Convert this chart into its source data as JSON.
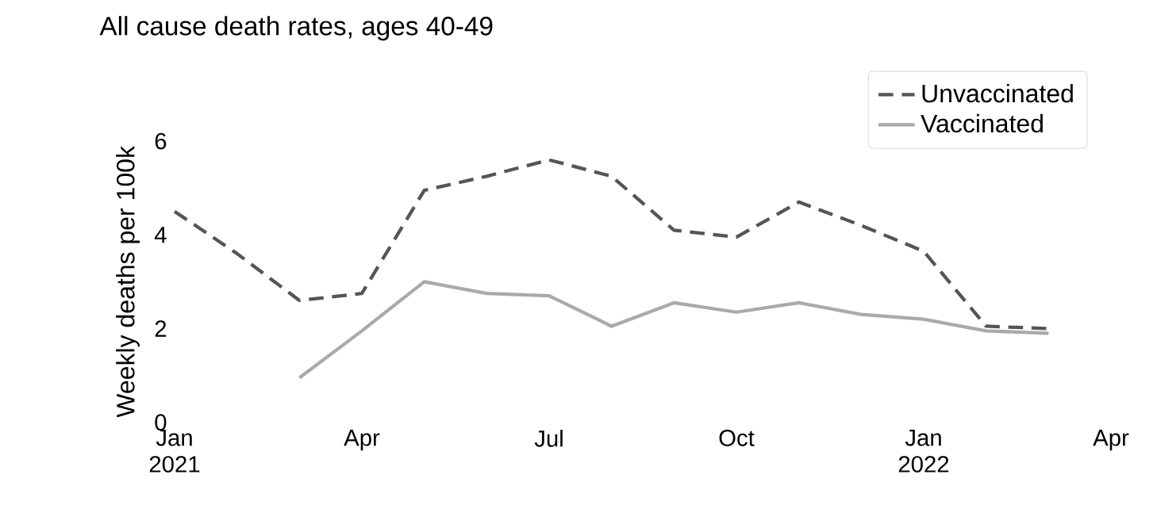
{
  "chart_data": {
    "type": "line",
    "title": "All cause death rates, ages 40-49",
    "ylabel": "Weekly deaths per 100k",
    "xlim": [
      "2021-01",
      "2022-04"
    ],
    "ylim": [
      0,
      6
    ],
    "xticks": [
      {
        "value": "2021-01",
        "label": "Jan 2021"
      },
      {
        "value": "2021-04",
        "label": "Apr"
      },
      {
        "value": "2021-07",
        "label": "Jul"
      },
      {
        "value": "2021-10",
        "label": "Oct"
      },
      {
        "value": "2022-01",
        "label": "Jan 2022"
      },
      {
        "value": "2022-04",
        "label": "Apr"
      }
    ],
    "yticks": [
      0,
      2,
      4,
      6
    ],
    "legend": "top right",
    "grid": false,
    "series": [
      {
        "name": "Unvaccinated",
        "color": "#555555",
        "line_style": "dashed",
        "x": [
          "2021-01",
          "2021-02",
          "2021-03",
          "2021-04",
          "2021-05",
          "2021-06",
          "2021-07",
          "2021-08",
          "2021-09",
          "2021-10",
          "2021-11",
          "2021-12",
          "2022-01",
          "2022-02",
          "2022-03"
        ],
        "values": [
          4.5,
          3.6,
          2.6,
          2.75,
          4.95,
          5.25,
          5.6,
          5.25,
          4.1,
          3.95,
          4.7,
          4.2,
          3.65,
          2.05,
          2.0
        ]
      },
      {
        "name": "Vaccinated",
        "color": "#aaaaaa",
        "line_style": "solid",
        "x": [
          "2021-03",
          "2021-04",
          "2021-05",
          "2021-06",
          "2021-07",
          "2021-08",
          "2021-09",
          "2021-10",
          "2021-11",
          "2021-12",
          "2022-01",
          "2022-02",
          "2022-03"
        ],
        "values": [
          0.95,
          1.95,
          3.0,
          2.75,
          2.7,
          2.05,
          2.55,
          2.35,
          2.55,
          2.3,
          2.2,
          1.95,
          1.9
        ]
      }
    ]
  }
}
